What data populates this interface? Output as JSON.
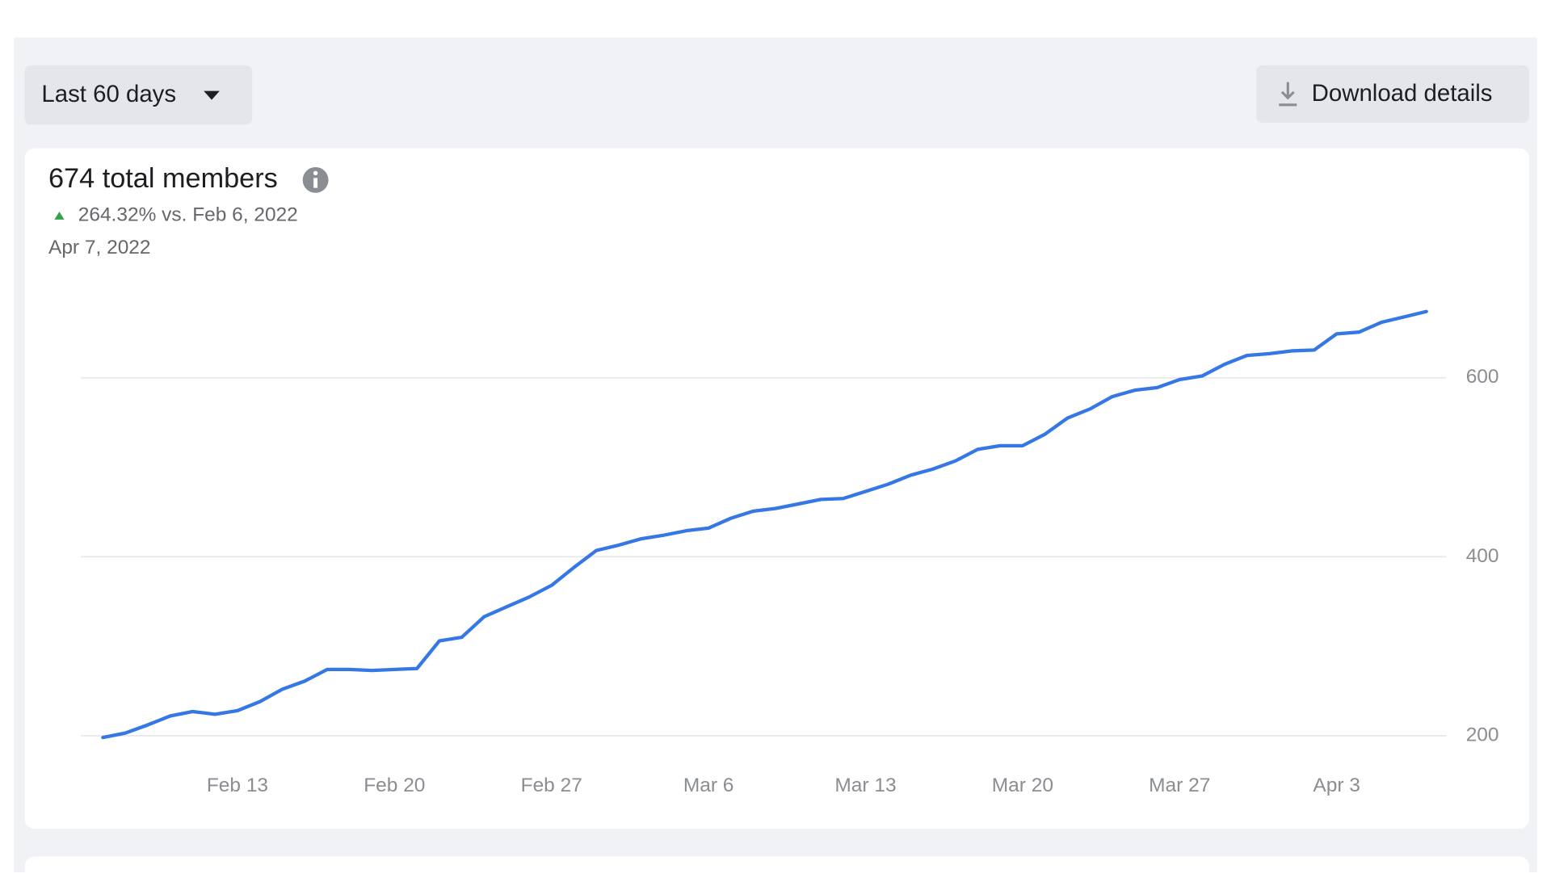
{
  "toolbar": {
    "range_select": "Last 60 days",
    "download_button": "Download details"
  },
  "chart_data": {
    "type": "line",
    "title": "674 total members",
    "subtitle": "264.32% vs. Feb 6, 2022",
    "date": "Apr 7, 2022",
    "categories": [
      null,
      null,
      null,
      null,
      null,
      null,
      "Feb 13",
      null,
      null,
      null,
      null,
      null,
      null,
      "Feb 20",
      null,
      null,
      null,
      null,
      null,
      null,
      "Feb 27",
      null,
      null,
      null,
      null,
      null,
      null,
      "Mar 6",
      null,
      null,
      null,
      null,
      null,
      null,
      "Mar 13",
      null,
      null,
      null,
      null,
      null,
      null,
      "Mar 20",
      null,
      null,
      null,
      null,
      null,
      null,
      "Mar 27",
      null,
      null,
      null,
      null,
      null,
      null,
      "Apr 3",
      null,
      null,
      null,
      null
    ],
    "values": [
      198,
      203,
      212,
      222,
      227,
      224,
      228,
      238,
      252,
      261,
      274,
      274,
      273,
      274,
      275,
      306,
      310,
      333,
      344,
      355,
      368,
      388,
      407,
      413,
      420,
      424,
      429,
      432,
      443,
      451,
      454,
      459,
      464,
      465,
      473,
      481,
      491,
      498,
      507,
      520,
      524,
      524,
      537,
      555,
      565,
      579,
      586,
      589,
      598,
      602,
      615,
      625,
      627,
      630,
      631,
      649,
      651,
      662,
      668,
      674
    ],
    "color": "#3578e5",
    "ylim": [
      180,
      700
    ],
    "yticks": [
      200,
      400,
      600
    ],
    "grid": true
  }
}
